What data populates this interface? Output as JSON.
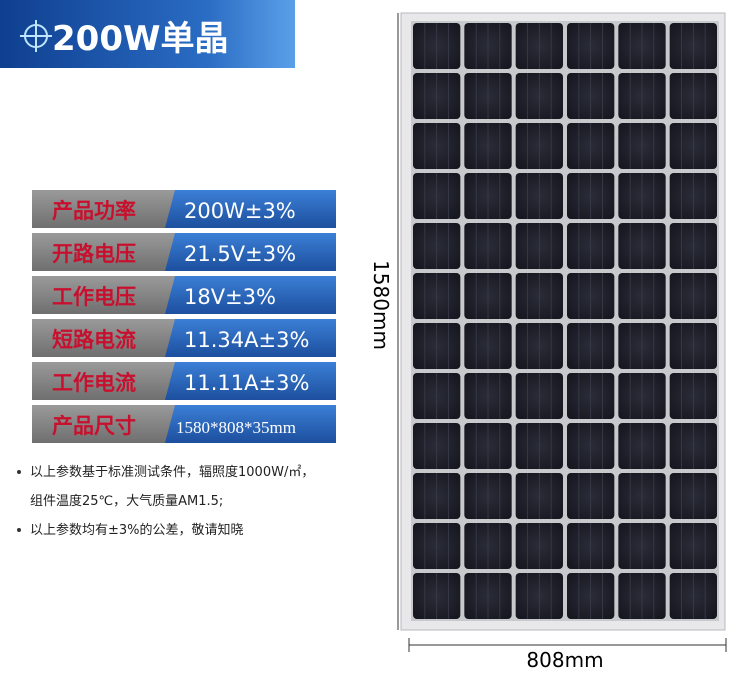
{
  "header": {
    "title": "200W单晶"
  },
  "specs": {
    "rows": [
      {
        "label": "产品功率",
        "value": "200W±3%"
      },
      {
        "label": "开路电压",
        "value": "21.5V±3%"
      },
      {
        "label": "工作电压",
        "value": "18V±3%"
      },
      {
        "label": "短路电流",
        "value": "11.34A±3%"
      },
      {
        "label": "工作电流",
        "value": "11.11A±3%"
      },
      {
        "label": "产品尺寸",
        "value": "1580*808*35mm"
      }
    ]
  },
  "notes": [
    "以上参数基于标准测试条件，辐照度1000W/㎡，",
    "组件温度25℃，大气质量AM1.5;",
    "以上参数均有±3%的公差，敬请知晓"
  ],
  "dimensions": {
    "height": "1580mm",
    "width": "808mm"
  }
}
